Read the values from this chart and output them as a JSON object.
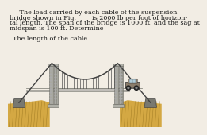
{
  "text_top_line1": "     The load carried by each cable of the suspension",
  "text_top_line2": "bridge shown in Fig.        is 2000 lb per foot of horizon-",
  "text_top_line3": "tal length. The span of the bridge is 1000 ft, and the sag at",
  "text_top_line4": "midspan is 100 ft. Determine",
  "text_bottom": "The length of the cable.",
  "bg_color": "#f2ede4",
  "text_color": "#1a1a1a",
  "ground_color_top": "#d4a843",
  "ground_color_bot": "#b8860b",
  "road_color": "#c0bdb8",
  "road_edge": "#888880",
  "pillar_color": "#a8a8a0",
  "pillar_edge": "#666660",
  "pillar_dark": "#909088",
  "cable_color": "#404040",
  "anchor_color": "#787870",
  "car_body_color": "#8B7D6B",
  "car_roof_color": "#9B8D7B",
  "font_size": 5.8,
  "num_hangers": 20
}
